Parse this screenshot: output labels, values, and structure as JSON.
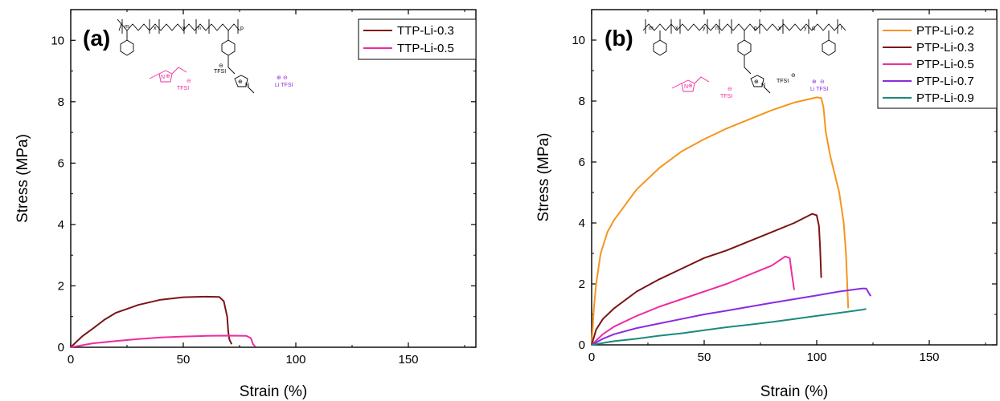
{
  "chart_data": [
    {
      "type": "line",
      "panel_label": "(a)",
      "xlabel": "Strain (%)",
      "ylabel": "Stress (MPa)",
      "xlim": [
        0,
        180
      ],
      "ylim": [
        0,
        11
      ],
      "xticks": [
        0,
        50,
        100,
        150
      ],
      "yticks": [
        0,
        2,
        4,
        6,
        8,
        10
      ],
      "legend_position": "top-right",
      "grid": false,
      "series": [
        {
          "name": "TTP-Li-0.3",
          "color": "#7b1418",
          "x": [
            0,
            5,
            10,
            15,
            20,
            25,
            30,
            40,
            50,
            60,
            66,
            68,
            69.5,
            70,
            70.5,
            71.5
          ],
          "y": [
            0,
            0.35,
            0.62,
            0.9,
            1.12,
            1.25,
            1.38,
            1.55,
            1.63,
            1.65,
            1.64,
            1.5,
            1.0,
            0.5,
            0.25,
            0.1
          ]
        },
        {
          "name": "TTP-Li-0.5",
          "color": "#ee2ca0",
          "x": [
            0,
            10,
            20,
            30,
            40,
            50,
            60,
            70,
            78,
            80,
            81,
            82
          ],
          "y": [
            0,
            0.13,
            0.2,
            0.27,
            0.32,
            0.35,
            0.37,
            0.38,
            0.37,
            0.3,
            0.1,
            0.02
          ]
        }
      ]
    },
    {
      "type": "line",
      "panel_label": "(b)",
      "xlabel": "Strain (%)",
      "ylabel": "Stress (MPa)",
      "xlim": [
        0,
        180
      ],
      "ylim": [
        0,
        11
      ],
      "xticks": [
        0,
        50,
        100,
        150
      ],
      "yticks": [
        0,
        2,
        4,
        6,
        8,
        10
      ],
      "legend_position": "top-right",
      "grid": false,
      "series": [
        {
          "name": "PTP-Li-0.2",
          "color": "#f7941d",
          "x": [
            0,
            1,
            2,
            4,
            7,
            10,
            15,
            20,
            30,
            40,
            50,
            60,
            70,
            80,
            90,
            100,
            102,
            103,
            104,
            106,
            110,
            112,
            113,
            114
          ],
          "y": [
            0,
            1.2,
            2.0,
            3.0,
            3.7,
            4.1,
            4.6,
            5.1,
            5.8,
            6.35,
            6.75,
            7.1,
            7.4,
            7.7,
            7.95,
            8.12,
            8.1,
            7.8,
            7.0,
            6.2,
            5.0,
            4.0,
            3.0,
            1.2
          ]
        },
        {
          "name": "PTP-Li-0.3",
          "color": "#7b1418",
          "x": [
            0,
            2,
            5,
            10,
            20,
            30,
            40,
            50,
            60,
            70,
            80,
            90,
            98,
            100,
            101,
            101.5,
            102
          ],
          "y": [
            0,
            0.5,
            0.85,
            1.2,
            1.75,
            2.15,
            2.5,
            2.85,
            3.1,
            3.4,
            3.7,
            4.0,
            4.3,
            4.25,
            3.9,
            3.2,
            2.2
          ]
        },
        {
          "name": "PTP-Li-0.5",
          "color": "#ee2ca0",
          "x": [
            0,
            5,
            10,
            20,
            30,
            40,
            50,
            60,
            70,
            80,
            86,
            88,
            89,
            90
          ],
          "y": [
            0,
            0.35,
            0.6,
            0.95,
            1.25,
            1.5,
            1.75,
            2.0,
            2.3,
            2.6,
            2.9,
            2.85,
            2.3,
            1.8
          ]
        },
        {
          "name": "PTP-Li-0.7",
          "color": "#8a2be2",
          "x": [
            0,
            5,
            10,
            20,
            30,
            40,
            50,
            60,
            70,
            80,
            90,
            100,
            110,
            120,
            122,
            123,
            124
          ],
          "y": [
            0,
            0.2,
            0.35,
            0.55,
            0.7,
            0.85,
            1.0,
            1.12,
            1.25,
            1.38,
            1.5,
            1.62,
            1.75,
            1.85,
            1.85,
            1.72,
            1.6
          ]
        },
        {
          "name": "PTP-Li-0.9",
          "color": "#1b8a7c",
          "x": [
            0,
            10,
            20,
            30,
            40,
            50,
            60,
            70,
            80,
            90,
            100,
            110,
            120,
            122
          ],
          "y": [
            0,
            0.12,
            0.2,
            0.3,
            0.38,
            0.48,
            0.58,
            0.66,
            0.75,
            0.85,
            0.95,
            1.05,
            1.15,
            1.18
          ]
        }
      ]
    }
  ],
  "schematic": {
    "anion_label": "TFSI",
    "salt_label": "Li TFSI",
    "charge_minus": "⊖",
    "charge_plus": "⊕",
    "charge_plus_small": "⊕",
    "subscripts_a": [
      "m",
      "x",
      "y",
      "n",
      "p"
    ],
    "subscripts_b": [
      "m",
      "x",
      "y",
      "n",
      "p",
      "x",
      "y",
      "q",
      "r"
    ],
    "methyl_label": "N",
    "il_color": "#ee2ca0",
    "salt_color": "#8a2be2"
  }
}
